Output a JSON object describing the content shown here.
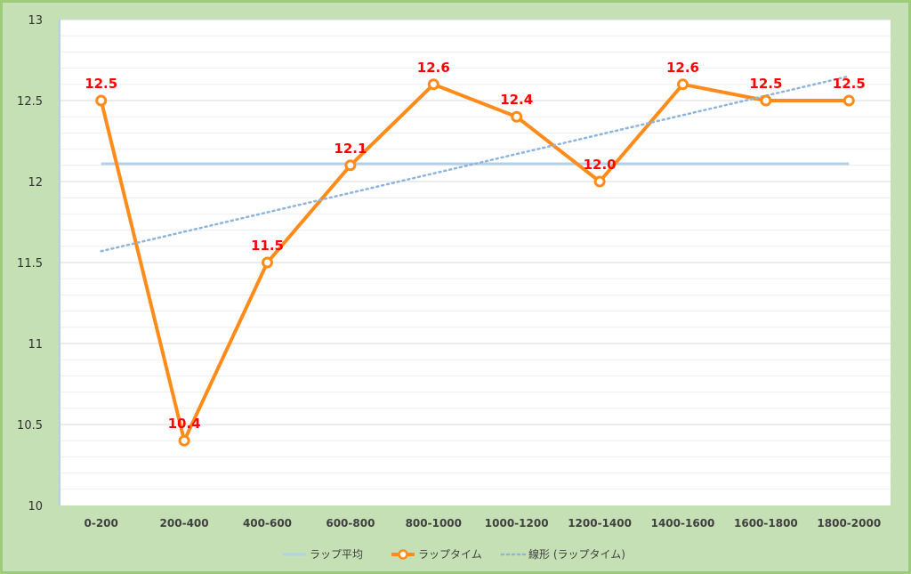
{
  "chart_data": {
    "type": "line",
    "categories": [
      "0-200",
      "200-400",
      "400-600",
      "600-800",
      "800-1000",
      "1000-1200",
      "1200-1400",
      "1400-1600",
      "1600-1800",
      "1800-2000"
    ],
    "series": [
      {
        "name": "ラップ平均",
        "values": [
          12.11,
          12.11,
          12.11,
          12.11,
          12.11,
          12.11,
          12.11,
          12.11,
          12.11,
          12.11
        ],
        "color": "#b4cfe8",
        "style": "solid"
      },
      {
        "name": "ラップタイム",
        "values": [
          12.5,
          10.4,
          11.5,
          12.1,
          12.6,
          12.4,
          12.0,
          12.6,
          12.5,
          12.5
        ],
        "labels": [
          "12.5",
          "10.4",
          "11.5",
          "12.1",
          "12.6",
          "12.4",
          "12.0",
          "12.6",
          "12.5",
          "12.5"
        ],
        "color": "#ff8c1a",
        "style": "solid-markers"
      },
      {
        "name": "線形 (ラップタイム)",
        "values": [
          11.57,
          11.69,
          11.81,
          11.93,
          12.05,
          12.17,
          12.29,
          12.41,
          12.53,
          12.65
        ],
        "color": "#8fb4dc",
        "style": "dotted"
      }
    ],
    "yticks": [
      "10",
      "10.5",
      "11",
      "11.5",
      "12",
      "12.5",
      "13"
    ],
    "ylim": [
      10,
      13
    ],
    "grid": true,
    "legend_position": "bottom",
    "label_color": "#ff0000",
    "background": "#ffffff",
    "frame_color": "#c5e0b4"
  }
}
